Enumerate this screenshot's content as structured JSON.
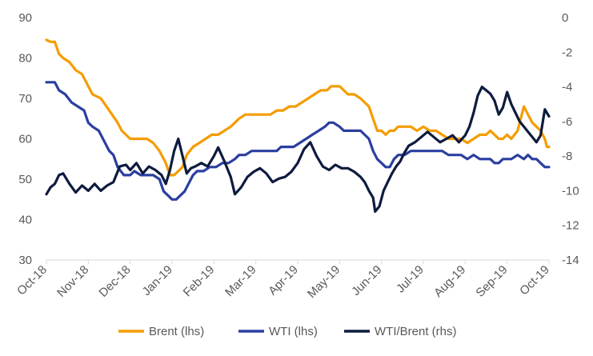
{
  "chart_data": {
    "type": "line",
    "x_labels": [
      "Oct-18",
      "Nov-18",
      "Dec-18",
      "Jan-19",
      "Feb-19",
      "Mar-19",
      "Apr-19",
      "May-19",
      "Jun-19",
      "Jul-19",
      "Aug-19",
      "Sep-19",
      "Oct-19"
    ],
    "y_left": {
      "min": 30,
      "max": 90,
      "step": 10,
      "ticks": [
        "30",
        "40",
        "50",
        "60",
        "70",
        "80",
        "90"
      ]
    },
    "y_right": {
      "min": -14,
      "max": 0,
      "step": 2,
      "ticks": [
        "-14",
        "-12",
        "-10",
        "-8",
        "-6",
        "-4",
        "-2",
        "0"
      ]
    },
    "grid": false,
    "legend_position": "bottom",
    "series": [
      {
        "name": "Brent (lhs)",
        "axis": "left",
        "color": "#F59C00",
        "points": [
          [
            0,
            84.5
          ],
          [
            0.1,
            84
          ],
          [
            0.2,
            84
          ],
          [
            0.3,
            81
          ],
          [
            0.4,
            80
          ],
          [
            0.55,
            79
          ],
          [
            0.7,
            77
          ],
          [
            0.85,
            76
          ],
          [
            1.0,
            73
          ],
          [
            1.1,
            71
          ],
          [
            1.3,
            70
          ],
          [
            1.5,
            67
          ],
          [
            1.7,
            64
          ],
          [
            1.8,
            62
          ],
          [
            2.0,
            60
          ],
          [
            2.2,
            60
          ],
          [
            2.4,
            60
          ],
          [
            2.55,
            59
          ],
          [
            2.7,
            57
          ],
          [
            2.85,
            54
          ],
          [
            2.95,
            51
          ],
          [
            3.05,
            51
          ],
          [
            3.15,
            52
          ],
          [
            3.25,
            53
          ],
          [
            3.35,
            56
          ],
          [
            3.5,
            58
          ],
          [
            3.65,
            59
          ],
          [
            3.8,
            60
          ],
          [
            3.95,
            61
          ],
          [
            4.1,
            61
          ],
          [
            4.25,
            62
          ],
          [
            4.4,
            63
          ],
          [
            4.5,
            64
          ],
          [
            4.6,
            65
          ],
          [
            4.75,
            66
          ],
          [
            4.9,
            66
          ],
          [
            5.05,
            66
          ],
          [
            5.2,
            66
          ],
          [
            5.35,
            66
          ],
          [
            5.5,
            67
          ],
          [
            5.65,
            67
          ],
          [
            5.8,
            68
          ],
          [
            5.95,
            68
          ],
          [
            6.1,
            69
          ],
          [
            6.25,
            70
          ],
          [
            6.4,
            71
          ],
          [
            6.55,
            72
          ],
          [
            6.7,
            72
          ],
          [
            6.8,
            73
          ],
          [
            6.9,
            73
          ],
          [
            7.0,
            73
          ],
          [
            7.1,
            72
          ],
          [
            7.2,
            71
          ],
          [
            7.35,
            71
          ],
          [
            7.5,
            70
          ],
          [
            7.6,
            69
          ],
          [
            7.7,
            68
          ],
          [
            7.8,
            65
          ],
          [
            7.9,
            62
          ],
          [
            8.0,
            62
          ],
          [
            8.1,
            61
          ],
          [
            8.2,
            62
          ],
          [
            8.3,
            62
          ],
          [
            8.4,
            63
          ],
          [
            8.55,
            63
          ],
          [
            8.7,
            63
          ],
          [
            8.85,
            62
          ],
          [
            9.0,
            63
          ],
          [
            9.15,
            62
          ],
          [
            9.3,
            62
          ],
          [
            9.45,
            61
          ],
          [
            9.6,
            60
          ],
          [
            9.75,
            60
          ],
          [
            9.9,
            60
          ],
          [
            10.05,
            59
          ],
          [
            10.2,
            60
          ],
          [
            10.35,
            61
          ],
          [
            10.5,
            61
          ],
          [
            10.6,
            62
          ],
          [
            10.7,
            61
          ],
          [
            10.8,
            60
          ],
          [
            10.9,
            60
          ],
          [
            11.0,
            61
          ],
          [
            11.1,
            60
          ],
          [
            11.25,
            62
          ],
          [
            11.4,
            68
          ],
          [
            11.5,
            66
          ],
          [
            11.6,
            64
          ],
          [
            11.7,
            63
          ],
          [
            11.8,
            62
          ],
          [
            11.9,
            60
          ],
          [
            11.95,
            58
          ],
          [
            12.0,
            58
          ]
        ]
      },
      {
        "name": "WTI (lhs)",
        "axis": "left",
        "color": "#2A3FA0",
        "points": [
          [
            0,
            74
          ],
          [
            0.1,
            74
          ],
          [
            0.2,
            74
          ],
          [
            0.3,
            72
          ],
          [
            0.45,
            71
          ],
          [
            0.6,
            69
          ],
          [
            0.75,
            68
          ],
          [
            0.9,
            67
          ],
          [
            1.0,
            64
          ],
          [
            1.1,
            63
          ],
          [
            1.25,
            62
          ],
          [
            1.4,
            59
          ],
          [
            1.5,
            57
          ],
          [
            1.6,
            56
          ],
          [
            1.7,
            53
          ],
          [
            1.85,
            51
          ],
          [
            2.0,
            51
          ],
          [
            2.1,
            52
          ],
          [
            2.25,
            51
          ],
          [
            2.4,
            51
          ],
          [
            2.55,
            51
          ],
          [
            2.7,
            50
          ],
          [
            2.8,
            47
          ],
          [
            2.9,
            46
          ],
          [
            3.0,
            45
          ],
          [
            3.1,
            45
          ],
          [
            3.2,
            46
          ],
          [
            3.3,
            47
          ],
          [
            3.4,
            49
          ],
          [
            3.5,
            51
          ],
          [
            3.6,
            52
          ],
          [
            3.75,
            52
          ],
          [
            3.9,
            53
          ],
          [
            4.05,
            53
          ],
          [
            4.2,
            54
          ],
          [
            4.35,
            54
          ],
          [
            4.5,
            55
          ],
          [
            4.6,
            56
          ],
          [
            4.75,
            56
          ],
          [
            4.9,
            57
          ],
          [
            5.05,
            57
          ],
          [
            5.2,
            57
          ],
          [
            5.35,
            57
          ],
          [
            5.5,
            57
          ],
          [
            5.6,
            58
          ],
          [
            5.75,
            58
          ],
          [
            5.9,
            58
          ],
          [
            6.05,
            59
          ],
          [
            6.2,
            60
          ],
          [
            6.35,
            61
          ],
          [
            6.5,
            62
          ],
          [
            6.65,
            63
          ],
          [
            6.75,
            64
          ],
          [
            6.85,
            64
          ],
          [
            7.0,
            63
          ],
          [
            7.1,
            62
          ],
          [
            7.2,
            62
          ],
          [
            7.35,
            62
          ],
          [
            7.5,
            62
          ],
          [
            7.6,
            61
          ],
          [
            7.7,
            60
          ],
          [
            7.8,
            57
          ],
          [
            7.9,
            55
          ],
          [
            8.0,
            54
          ],
          [
            8.1,
            53
          ],
          [
            8.2,
            53
          ],
          [
            8.3,
            55
          ],
          [
            8.4,
            56
          ],
          [
            8.55,
            56
          ],
          [
            8.7,
            57
          ],
          [
            8.85,
            57
          ],
          [
            9.0,
            57
          ],
          [
            9.15,
            57
          ],
          [
            9.3,
            57
          ],
          [
            9.45,
            57
          ],
          [
            9.6,
            56
          ],
          [
            9.75,
            56
          ],
          [
            9.9,
            56
          ],
          [
            10.05,
            55
          ],
          [
            10.2,
            56
          ],
          [
            10.35,
            55
          ],
          [
            10.5,
            55
          ],
          [
            10.6,
            55
          ],
          [
            10.7,
            54
          ],
          [
            10.8,
            54
          ],
          [
            10.9,
            55
          ],
          [
            11.0,
            55
          ],
          [
            11.1,
            55
          ],
          [
            11.25,
            56
          ],
          [
            11.4,
            55
          ],
          [
            11.5,
            56
          ],
          [
            11.6,
            55
          ],
          [
            11.7,
            55
          ],
          [
            11.8,
            54
          ],
          [
            11.9,
            53
          ],
          [
            12.0,
            53
          ]
        ]
      },
      {
        "name": "WTI/Brent (rhs)",
        "axis": "right",
        "color": "#0D1B3E",
        "points": [
          [
            0,
            -10.2
          ],
          [
            0.1,
            -9.8
          ],
          [
            0.2,
            -9.6
          ],
          [
            0.3,
            -9.1
          ],
          [
            0.4,
            -9.0
          ],
          [
            0.55,
            -9.6
          ],
          [
            0.7,
            -10.1
          ],
          [
            0.85,
            -9.7
          ],
          [
            1.0,
            -10.0
          ],
          [
            1.15,
            -9.6
          ],
          [
            1.3,
            -10.0
          ],
          [
            1.45,
            -9.7
          ],
          [
            1.6,
            -9.5
          ],
          [
            1.75,
            -8.6
          ],
          [
            1.9,
            -8.5
          ],
          [
            2.0,
            -8.8
          ],
          [
            2.15,
            -8.4
          ],
          [
            2.3,
            -9.0
          ],
          [
            2.45,
            -8.6
          ],
          [
            2.6,
            -8.8
          ],
          [
            2.75,
            -9.1
          ],
          [
            2.85,
            -9.6
          ],
          [
            2.95,
            -8.8
          ],
          [
            3.05,
            -7.7
          ],
          [
            3.15,
            -7.0
          ],
          [
            3.25,
            -8.0
          ],
          [
            3.35,
            -9.0
          ],
          [
            3.45,
            -8.7
          ],
          [
            3.55,
            -8.6
          ],
          [
            3.7,
            -8.4
          ],
          [
            3.85,
            -8.6
          ],
          [
            4.0,
            -8.0
          ],
          [
            4.1,
            -7.5
          ],
          [
            4.25,
            -8.3
          ],
          [
            4.4,
            -9.2
          ],
          [
            4.5,
            -10.2
          ],
          [
            4.65,
            -9.8
          ],
          [
            4.8,
            -9.2
          ],
          [
            4.95,
            -8.9
          ],
          [
            5.1,
            -8.7
          ],
          [
            5.25,
            -9.0
          ],
          [
            5.4,
            -9.5
          ],
          [
            5.55,
            -9.3
          ],
          [
            5.7,
            -9.2
          ],
          [
            5.85,
            -8.9
          ],
          [
            6.0,
            -8.4
          ],
          [
            6.15,
            -7.6
          ],
          [
            6.3,
            -7.2
          ],
          [
            6.45,
            -8.0
          ],
          [
            6.6,
            -8.6
          ],
          [
            6.75,
            -8.8
          ],
          [
            6.9,
            -8.5
          ],
          [
            7.05,
            -8.7
          ],
          [
            7.2,
            -8.7
          ],
          [
            7.35,
            -8.9
          ],
          [
            7.5,
            -9.2
          ],
          [
            7.6,
            -9.5
          ],
          [
            7.7,
            -10.0
          ],
          [
            7.8,
            -10.4
          ],
          [
            7.85,
            -11.2
          ],
          [
            7.95,
            -10.9
          ],
          [
            8.05,
            -10.0
          ],
          [
            8.15,
            -9.5
          ],
          [
            8.25,
            -9.0
          ],
          [
            8.35,
            -8.6
          ],
          [
            8.45,
            -8.3
          ],
          [
            8.55,
            -7.8
          ],
          [
            8.65,
            -7.4
          ],
          [
            8.8,
            -7.2
          ],
          [
            8.95,
            -6.9
          ],
          [
            9.1,
            -6.6
          ],
          [
            9.25,
            -6.9
          ],
          [
            9.4,
            -7.2
          ],
          [
            9.55,
            -7.0
          ],
          [
            9.7,
            -6.8
          ],
          [
            9.85,
            -7.2
          ],
          [
            10.0,
            -6.8
          ],
          [
            10.1,
            -6.3
          ],
          [
            10.2,
            -5.5
          ],
          [
            10.3,
            -4.5
          ],
          [
            10.4,
            -4.0
          ],
          [
            10.5,
            -4.2
          ],
          [
            10.6,
            -4.4
          ],
          [
            10.7,
            -4.8
          ],
          [
            10.8,
            -5.6
          ],
          [
            10.9,
            -5.2
          ],
          [
            11.0,
            -4.3
          ],
          [
            11.1,
            -5.0
          ],
          [
            11.2,
            -5.5
          ],
          [
            11.3,
            -6.0
          ],
          [
            11.4,
            -6.3
          ],
          [
            11.5,
            -6.6
          ],
          [
            11.6,
            -6.9
          ],
          [
            11.7,
            -7.2
          ],
          [
            11.8,
            -6.8
          ],
          [
            11.9,
            -5.3
          ],
          [
            12.0,
            -5.7
          ]
        ]
      }
    ]
  }
}
